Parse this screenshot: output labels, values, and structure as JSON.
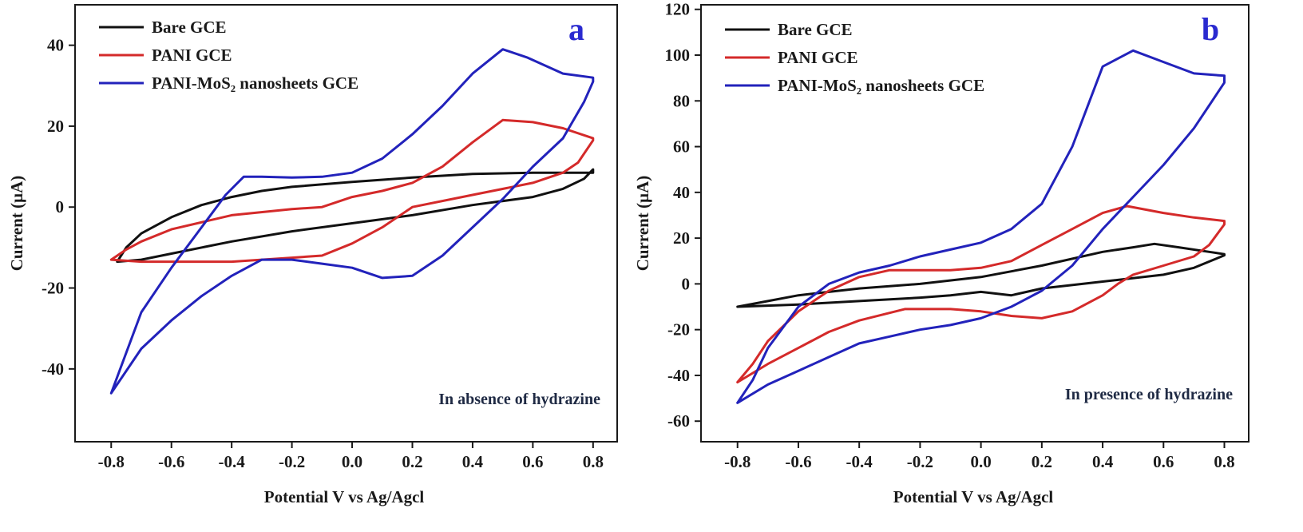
{
  "chart_data": [
    {
      "type": "line",
      "panel_label": "a",
      "annotation": "In absence of hydrazine",
      "xlabel": "Potential V vs Ag/Agcl",
      "ylabel": "Current (µA)",
      "xlim": [
        -0.92,
        0.88
      ],
      "ylim": [
        -58,
        50
      ],
      "xticks": [
        -0.8,
        -0.6,
        -0.4,
        -0.2,
        0.0,
        0.2,
        0.4,
        0.6,
        0.8
      ],
      "xtick_labels": [
        "-0.8",
        "-0.6",
        "-0.4",
        "-0.2",
        "0.0",
        "0.2",
        "0.4",
        "0.6",
        "0.8"
      ],
      "yticks": [
        -40,
        -20,
        0,
        20,
        40
      ],
      "ytick_labels": [
        "-40",
        "-20",
        "0",
        "20",
        "40"
      ],
      "legend": "top-left",
      "grid": false,
      "series": [
        {
          "name": "Bare GCE",
          "color": "#111111",
          "points": [
            [
              -0.78,
              -13.5
            ],
            [
              -0.75,
              -10
            ],
            [
              -0.7,
              -6.5
            ],
            [
              -0.6,
              -2.5
            ],
            [
              -0.5,
              0.5
            ],
            [
              -0.4,
              2.5
            ],
            [
              -0.3,
              4
            ],
            [
              -0.2,
              5
            ],
            [
              0,
              6.2
            ],
            [
              0.2,
              7.3
            ],
            [
              0.4,
              8.2
            ],
            [
              0.6,
              8.5
            ],
            [
              0.8,
              8.5
            ],
            [
              0.8,
              9.3
            ],
            [
              0.77,
              7
            ],
            [
              0.7,
              4.5
            ],
            [
              0.6,
              2.5
            ],
            [
              0.4,
              0.5
            ],
            [
              0.2,
              -2
            ],
            [
              0,
              -4
            ],
            [
              -0.2,
              -6
            ],
            [
              -0.4,
              -8.5
            ],
            [
              -0.6,
              -11.5
            ],
            [
              -0.7,
              -13
            ],
            [
              -0.78,
              -13.5
            ]
          ]
        },
        {
          "name": "PANI GCE",
          "color": "#d42a2a",
          "points": [
            [
              -0.8,
              -13
            ],
            [
              -0.75,
              -10.5
            ],
            [
              -0.7,
              -8.5
            ],
            [
              -0.6,
              -5.5
            ],
            [
              -0.4,
              -2
            ],
            [
              -0.2,
              -0.5
            ],
            [
              -0.1,
              0
            ],
            [
              0,
              2.5
            ],
            [
              0.1,
              4
            ],
            [
              0.2,
              6
            ],
            [
              0.3,
              10
            ],
            [
              0.4,
              16
            ],
            [
              0.5,
              21.5
            ],
            [
              0.6,
              21
            ],
            [
              0.7,
              19.5
            ],
            [
              0.8,
              17
            ],
            [
              0.8,
              16.5
            ],
            [
              0.75,
              11
            ],
            [
              0.7,
              8.5
            ],
            [
              0.6,
              6
            ],
            [
              0.4,
              3
            ],
            [
              0.2,
              0
            ],
            [
              0.1,
              -5
            ],
            [
              0,
              -9
            ],
            [
              -0.1,
              -12
            ],
            [
              -0.2,
              -12.5
            ],
            [
              -0.4,
              -13.5
            ],
            [
              -0.6,
              -13.5
            ],
            [
              -0.7,
              -13.5
            ],
            [
              -0.8,
              -13
            ]
          ]
        },
        {
          "name": "PANI-MoS₂ nanosheets GCE",
          "color": "#2222bb",
          "points": [
            [
              -0.8,
              -46
            ],
            [
              -0.78,
              -42
            ],
            [
              -0.75,
              -36
            ],
            [
              -0.7,
              -26
            ],
            [
              -0.6,
              -15
            ],
            [
              -0.5,
              -5
            ],
            [
              -0.42,
              3
            ],
            [
              -0.36,
              7.5
            ],
            [
              -0.3,
              7.5
            ],
            [
              -0.2,
              7.3
            ],
            [
              -0.1,
              7.5
            ],
            [
              0,
              8.5
            ],
            [
              0.1,
              12
            ],
            [
              0.2,
              18
            ],
            [
              0.3,
              25
            ],
            [
              0.4,
              33
            ],
            [
              0.5,
              39
            ],
            [
              0.58,
              37
            ],
            [
              0.7,
              33
            ],
            [
              0.8,
              32
            ],
            [
              0.8,
              31
            ],
            [
              0.77,
              26
            ],
            [
              0.7,
              17
            ],
            [
              0.6,
              10
            ],
            [
              0.5,
              2
            ],
            [
              0.4,
              -5
            ],
            [
              0.3,
              -12
            ],
            [
              0.2,
              -17
            ],
            [
              0.1,
              -17.5
            ],
            [
              0,
              -15
            ],
            [
              -0.1,
              -14
            ],
            [
              -0.2,
              -13
            ],
            [
              -0.3,
              -13
            ],
            [
              -0.4,
              -17
            ],
            [
              -0.5,
              -22
            ],
            [
              -0.6,
              -28
            ],
            [
              -0.7,
              -35
            ],
            [
              -0.8,
              -46
            ]
          ]
        }
      ]
    },
    {
      "type": "line",
      "panel_label": "b",
      "annotation": "In presence of hydrazine",
      "xlabel": "Potential V vs Ag/Agcl",
      "ylabel": "Current (µA)",
      "xlim": [
        -0.92,
        0.88
      ],
      "ylim": [
        -69,
        122
      ],
      "xticks": [
        -0.8,
        -0.6,
        -0.4,
        -0.2,
        0.0,
        0.2,
        0.4,
        0.6,
        0.8
      ],
      "xtick_labels": [
        "-0.8",
        "-0.6",
        "-0.4",
        "-0.2",
        "0.0",
        "0.2",
        "0.4",
        "0.6",
        "0.8"
      ],
      "yticks": [
        -60,
        -40,
        -20,
        0,
        20,
        40,
        60,
        80,
        100,
        120
      ],
      "ytick_labels": [
        "-60",
        "-40",
        "-20",
        "0",
        "20",
        "40",
        "60",
        "80",
        "100",
        "120"
      ],
      "legend": "top-left",
      "grid": false,
      "series": [
        {
          "name": "Bare GCE",
          "color": "#111111",
          "points": [
            [
              -0.8,
              -10
            ],
            [
              -0.7,
              -7.5
            ],
            [
              -0.6,
              -5
            ],
            [
              -0.4,
              -2
            ],
            [
              -0.2,
              0
            ],
            [
              0,
              3
            ],
            [
              0.2,
              8
            ],
            [
              0.4,
              14
            ],
            [
              0.5,
              16
            ],
            [
              0.57,
              17.5
            ],
            [
              0.65,
              16
            ],
            [
              0.75,
              14
            ],
            [
              0.8,
              13
            ],
            [
              0.8,
              12.5
            ],
            [
              0.7,
              7
            ],
            [
              0.6,
              4
            ],
            [
              0.4,
              1
            ],
            [
              0.2,
              -2
            ],
            [
              0.1,
              -5
            ],
            [
              0,
              -3.5
            ],
            [
              -0.1,
              -5
            ],
            [
              -0.2,
              -6
            ],
            [
              -0.4,
              -7.5
            ],
            [
              -0.6,
              -9
            ],
            [
              -0.8,
              -10
            ]
          ]
        },
        {
          "name": "PANI GCE",
          "color": "#d42a2a",
          "points": [
            [
              -0.8,
              -43
            ],
            [
              -0.75,
              -35
            ],
            [
              -0.7,
              -25
            ],
            [
              -0.6,
              -12
            ],
            [
              -0.5,
              -3
            ],
            [
              -0.4,
              3
            ],
            [
              -0.3,
              6
            ],
            [
              -0.2,
              6
            ],
            [
              -0.1,
              6
            ],
            [
              0,
              7
            ],
            [
              0.1,
              10
            ],
            [
              0.2,
              17
            ],
            [
              0.3,
              24
            ],
            [
              0.4,
              31
            ],
            [
              0.48,
              34
            ],
            [
              0.6,
              31
            ],
            [
              0.7,
              29
            ],
            [
              0.8,
              27.5
            ],
            [
              0.8,
              26
            ],
            [
              0.75,
              17
            ],
            [
              0.7,
              12
            ],
            [
              0.6,
              8
            ],
            [
              0.5,
              4
            ],
            [
              0.45,
              0
            ],
            [
              0.4,
              -5
            ],
            [
              0.3,
              -12
            ],
            [
              0.2,
              -15
            ],
            [
              0.1,
              -14
            ],
            [
              0,
              -12
            ],
            [
              -0.1,
              -11
            ],
            [
              -0.25,
              -11
            ],
            [
              -0.4,
              -16
            ],
            [
              -0.5,
              -21
            ],
            [
              -0.6,
              -28
            ],
            [
              -0.7,
              -35
            ],
            [
              -0.8,
              -43
            ]
          ]
        },
        {
          "name": "PANI-MoS₂ nanosheets GCE",
          "color": "#2222bb",
          "points": [
            [
              -0.8,
              -52
            ],
            [
              -0.75,
              -42
            ],
            [
              -0.7,
              -28
            ],
            [
              -0.6,
              -10
            ],
            [
              -0.5,
              0
            ],
            [
              -0.4,
              5
            ],
            [
              -0.3,
              8
            ],
            [
              -0.2,
              12
            ],
            [
              -0.1,
              15
            ],
            [
              0,
              18
            ],
            [
              0.1,
              24
            ],
            [
              0.2,
              35
            ],
            [
              0.3,
              60
            ],
            [
              0.4,
              95
            ],
            [
              0.5,
              102
            ],
            [
              0.6,
              97
            ],
            [
              0.7,
              92
            ],
            [
              0.8,
              91
            ],
            [
              0.8,
              88
            ],
            [
              0.75,
              78
            ],
            [
              0.7,
              68
            ],
            [
              0.6,
              52
            ],
            [
              0.5,
              38
            ],
            [
              0.4,
              24
            ],
            [
              0.3,
              8
            ],
            [
              0.2,
              -3
            ],
            [
              0.1,
              -10
            ],
            [
              0,
              -15
            ],
            [
              -0.1,
              -18
            ],
            [
              -0.2,
              -20
            ],
            [
              -0.3,
              -23
            ],
            [
              -0.4,
              -26
            ],
            [
              -0.5,
              -32
            ],
            [
              -0.6,
              -38
            ],
            [
              -0.7,
              -44
            ],
            [
              -0.8,
              -52
            ]
          ]
        }
      ]
    }
  ]
}
